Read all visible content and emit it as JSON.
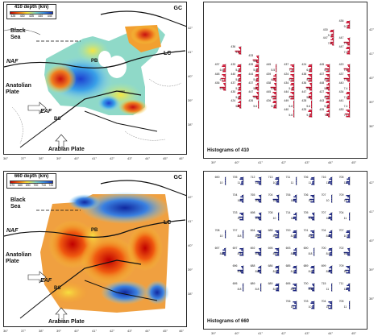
{
  "panels": [
    {
      "map": {
        "colorbar_title": "410 depth (km)",
        "colorbar_ticks": [
          "425",
          "430",
          "435",
          "440",
          "445"
        ],
        "labels": {
          "gc": "GC",
          "black_sea": "Black\nSea",
          "lc": "LC",
          "naf": "NAF",
          "anatolian_plate": "Anatolian\nPlate",
          "eaf": "EAF",
          "bs": "BS",
          "pb": "PB",
          "arabian_plate": "Arabian Plate"
        },
        "x_ticks": [
          "36°",
          "37°",
          "38°",
          "39°",
          "40°",
          "41°",
          "42°",
          "43°",
          "44°",
          "45°",
          "46°"
        ],
        "y_ticks": [
          "42°",
          "41°",
          "40°",
          "39°",
          "38°"
        ]
      },
      "histogram": {
        "title": "Histograms of 410",
        "x_ticks": [
          "39°",
          "40°",
          "41°",
          "42°",
          "43°",
          "44°",
          "45°"
        ],
        "y_ticks": [
          "42°",
          "41°",
          "40°",
          "39°",
          "38°"
        ],
        "color": "#c8102e",
        "cells": [
          {
            "mean": "436",
            "sd": "9.3",
            "col": 7.3,
            "row": 0.0
          },
          {
            "mean": "430",
            "sd": "9.3",
            "col": 6.4,
            "row": 0.7
          },
          {
            "mean": "447",
            "sd": "7.4",
            "col": 7.3,
            "row": 1.3
          },
          {
            "mean": "436",
            "sd": "9.3",
            "col": 1.2,
            "row": 2.0
          },
          {
            "mean": "447",
            "sd": "7.4",
            "col": 7.3,
            "row": 2.0
          },
          {
            "mean": "447",
            "sd": "7.4",
            "col": 6.4,
            "row": 1.3
          },
          {
            "mean": "433",
            "sd": "5.6",
            "col": 2.2,
            "row": 2.7
          },
          {
            "mean": "439",
            "sd": "5.8",
            "col": 2.2,
            "row": 3.4
          },
          {
            "mean": "433",
            "sd": "5.2",
            "col": 1.2,
            "row": 3.4
          },
          {
            "mean": "437",
            "sd": "6.6",
            "col": 0.3,
            "row": 3.4
          },
          {
            "mean": "445",
            "sd": "5.5",
            "col": 3.2,
            "row": 3.4
          },
          {
            "mean": "437",
            "sd": "7.3",
            "col": 4.2,
            "row": 3.4
          },
          {
            "mean": "424",
            "sd": "6.6",
            "col": 5.2,
            "row": 3.4
          },
          {
            "mean": "445",
            "sd": "5.6",
            "col": 6.2,
            "row": 3.4
          },
          {
            "mean": "420",
            "sd": "7.4",
            "col": 7.3,
            "row": 3.4
          },
          {
            "mean": "448",
            "sd": "6.1",
            "col": 0.3,
            "row": 4.1
          },
          {
            "mean": "440",
            "sd": "5.6",
            "col": 1.2,
            "row": 4.1
          },
          {
            "mean": "444",
            "sd": "5.6",
            "col": 2.2,
            "row": 4.1
          },
          {
            "mean": "439",
            "sd": "6.7",
            "col": 3.2,
            "row": 4.1
          },
          {
            "mean": "424",
            "sd": "5.6",
            "col": 4.2,
            "row": 4.1
          },
          {
            "mean": "438",
            "sd": "5.6",
            "col": 5.2,
            "row": 4.1
          },
          {
            "mean": "437",
            "sd": "5.6",
            "col": 6.2,
            "row": 4.1
          },
          {
            "mean": "437",
            "sd": "7.4",
            "col": 7.3,
            "row": 4.1
          },
          {
            "mean": "436",
            "sd": "6.0",
            "col": 0.3,
            "row": 4.8
          },
          {
            "mean": "437",
            "sd": "5.7",
            "col": 1.2,
            "row": 4.8
          },
          {
            "mean": "437",
            "sd": "5.5",
            "col": 2.2,
            "row": 4.8
          },
          {
            "mean": "438",
            "sd": "5.6",
            "col": 3.2,
            "row": 4.8
          },
          {
            "mean": "434",
            "sd": "5.6",
            "col": 4.2,
            "row": 4.8
          },
          {
            "mean": "436",
            "sd": "5.6",
            "col": 5.2,
            "row": 4.8
          },
          {
            "mean": "448",
            "sd": "5.6",
            "col": 6.2,
            "row": 4.8
          },
          {
            "mean": "440",
            "sd": "7.4",
            "col": 7.3,
            "row": 4.8
          },
          {
            "mean": "430",
            "sd": "5.6",
            "col": 1.2,
            "row": 5.5
          },
          {
            "mean": "447",
            "sd": "5.6",
            "col": 2.2,
            "row": 5.5
          },
          {
            "mean": "445",
            "sd": "5.6",
            "col": 3.2,
            "row": 5.5
          },
          {
            "mean": "444",
            "sd": "5.6",
            "col": 4.2,
            "row": 5.5
          },
          {
            "mean": "447",
            "sd": "5.6",
            "col": 5.2,
            "row": 5.5
          },
          {
            "mean": "427",
            "sd": "5.6",
            "col": 6.2,
            "row": 5.5
          },
          {
            "mean": "434",
            "sd": "7.4",
            "col": 7.3,
            "row": 5.5
          },
          {
            "mean": "424",
            "sd": "5.6",
            "col": 1.2,
            "row": 6.2
          },
          {
            "mean": "426",
            "sd": "5.6",
            "col": 2.2,
            "row": 6.2
          },
          {
            "mean": "426",
            "sd": "5.6",
            "col": 3.2,
            "row": 6.2
          },
          {
            "mean": "449",
            "sd": "5.6",
            "col": 4.2,
            "row": 6.2
          },
          {
            "mean": "428",
            "sd": "5.6",
            "col": 5.2,
            "row": 6.2
          },
          {
            "mean": "443",
            "sd": "5.6",
            "col": 6.2,
            "row": 6.2
          },
          {
            "mean": "441",
            "sd": "7.4",
            "col": 7.3,
            "row": 6.2
          },
          {
            "mean": "440",
            "sd": "5.6",
            "col": 4.2,
            "row": 6.9
          },
          {
            "mean": "425",
            "sd": "9.3",
            "col": 5.2,
            "row": 6.9
          },
          {
            "mean": "425",
            "sd": "7.4",
            "col": 6.2,
            "row": 6.9
          },
          {
            "mean": "430",
            "sd": "7.4",
            "col": 7.3,
            "row": 6.9
          }
        ]
      }
    },
    {
      "map": {
        "colorbar_title": "660 depth (km)",
        "colorbar_ticks": [
          "670",
          "680",
          "690",
          "700",
          "710",
          "720"
        ],
        "labels": {
          "gc": "GC",
          "black_sea": "Black\nSea",
          "lc": "LC",
          "naf": "NAF",
          "anatolian_plate": "Anatolian\nPlate",
          "eaf": "EAF",
          "bs": "BS",
          "pb": "PB",
          "arabian_plate": "Arabian Plate"
        },
        "x_ticks": [
          "36°",
          "37°",
          "38°",
          "39°",
          "40°",
          "41°",
          "42°",
          "43°",
          "44°",
          "45°",
          "46°"
        ],
        "y_ticks": [
          "42°",
          "41°",
          "40°",
          "39°",
          "38°"
        ]
      },
      "histogram": {
        "title": "Histograms of 660",
        "x_ticks": [
          "39°",
          "40°",
          "41°",
          "42°",
          "43°",
          "44°",
          "45°"
        ],
        "y_ticks": [
          "42°",
          "41°",
          "40°",
          "39°",
          "38°"
        ],
        "color": "#1a237e",
        "cells": [
          {
            "mean": "690",
            "sd": "10",
            "col": 0.3,
            "row": 0
          },
          {
            "mean": "705",
            "sd": "11",
            "col": 1.3,
            "row": 0
          },
          {
            "mean": "712",
            "sd": "11",
            "col": 2.3,
            "row": 0
          },
          {
            "mean": "713",
            "sd": "10",
            "col": 3.3,
            "row": 0
          },
          {
            "mean": "711",
            "sd": "11",
            "col": 4.3,
            "row": 0
          },
          {
            "mean": "706",
            "sd": "11",
            "col": 5.3,
            "row": 0
          },
          {
            "mean": "716",
            "sd": "11",
            "col": 6.3,
            "row": 0
          },
          {
            "mean": "705",
            "sd": "11",
            "col": 7.3,
            "row": 0
          },
          {
            "mean": "704",
            "sd": "10",
            "col": 1.3,
            "row": 1
          },
          {
            "mean": "765",
            "sd": "10",
            "col": 2.3,
            "row": 1
          },
          {
            "mean": "704",
            "sd": "10",
            "col": 3.3,
            "row": 1
          },
          {
            "mean": "706",
            "sd": "10",
            "col": 4.3,
            "row": 1
          },
          {
            "mean": "706",
            "sd": "10",
            "col": 5.3,
            "row": 1
          },
          {
            "mean": "707",
            "sd": "10",
            "col": 6.3,
            "row": 1
          },
          {
            "mean": "709",
            "sd": "11",
            "col": 7.3,
            "row": 1
          },
          {
            "mean": "703",
            "sd": "10",
            "col": 1.3,
            "row": 2
          },
          {
            "mean": "698",
            "sd": "10",
            "col": 2.3,
            "row": 2
          },
          {
            "mean": "708",
            "sd": "10",
            "col": 3.3,
            "row": 2
          },
          {
            "mean": "714",
            "sd": "11",
            "col": 4.3,
            "row": 2
          },
          {
            "mean": "705",
            "sd": "10",
            "col": 5.3,
            "row": 2
          },
          {
            "mean": "707",
            "sd": "10",
            "col": 6.3,
            "row": 2
          },
          {
            "mean": "704",
            "sd": "11",
            "col": 7.3,
            "row": 2
          },
          {
            "mean": "708",
            "sd": "10",
            "col": 0.3,
            "row": 3
          },
          {
            "mean": "707",
            "sd": "8.8",
            "col": 1.3,
            "row": 3
          },
          {
            "mean": "694",
            "sd": "8.8",
            "col": 2.3,
            "row": 3
          },
          {
            "mean": "688",
            "sd": "8.8",
            "col": 3.3,
            "row": 3
          },
          {
            "mean": "700",
            "sd": "8.8",
            "col": 4.3,
            "row": 3
          },
          {
            "mean": "701",
            "sd": "8.8",
            "col": 5.3,
            "row": 3
          },
          {
            "mean": "704",
            "sd": "8.8",
            "col": 6.3,
            "row": 3
          },
          {
            "mean": "707",
            "sd": "10",
            "col": 7.3,
            "row": 3
          },
          {
            "mean": "697",
            "sd": "8.8",
            "col": 0.3,
            "row": 4
          },
          {
            "mean": "697",
            "sd": "8.8",
            "col": 1.3,
            "row": 4
          },
          {
            "mean": "692",
            "sd": "8.8",
            "col": 2.3,
            "row": 4
          },
          {
            "mean": "695",
            "sd": "8.8",
            "col": 3.3,
            "row": 4
          },
          {
            "mean": "693",
            "sd": "8.8",
            "col": 4.3,
            "row": 4
          },
          {
            "mean": "690",
            "sd": "8.8",
            "col": 5.3,
            "row": 4
          },
          {
            "mean": "700",
            "sd": "8.8",
            "col": 6.3,
            "row": 4
          },
          {
            "mean": "702",
            "sd": "10",
            "col": 7.3,
            "row": 4
          },
          {
            "mean": "696",
            "sd": "8.8",
            "col": 1.3,
            "row": 5
          },
          {
            "mean": "688",
            "sd": "8.8",
            "col": 2.3,
            "row": 5
          },
          {
            "mean": "686",
            "sd": "8.8",
            "col": 3.3,
            "row": 5
          },
          {
            "mean": "685",
            "sd": "8.8",
            "col": 4.3,
            "row": 5
          },
          {
            "mean": "689",
            "sd": "8.8",
            "col": 5.3,
            "row": 5
          },
          {
            "mean": "699",
            "sd": "8.8",
            "col": 6.3,
            "row": 5
          },
          {
            "mean": "709",
            "sd": "10",
            "col": 7.3,
            "row": 5
          },
          {
            "mean": "695",
            "sd": "8.8",
            "col": 1.3,
            "row": 6
          },
          {
            "mean": "689",
            "sd": "8.8",
            "col": 2.3,
            "row": 6
          },
          {
            "mean": "689",
            "sd": "8.8",
            "col": 3.3,
            "row": 6
          },
          {
            "mean": "695",
            "sd": "8.8",
            "col": 4.3,
            "row": 6
          },
          {
            "mean": "700",
            "sd": "8.8",
            "col": 5.3,
            "row": 6
          },
          {
            "mean": "715",
            "sd": "11",
            "col": 6.3,
            "row": 6
          },
          {
            "mean": "711",
            "sd": "11",
            "col": 7.3,
            "row": 6
          },
          {
            "mean": "706",
            "sd": "10",
            "col": 4.3,
            "row": 7
          },
          {
            "mean": "703",
            "sd": "10",
            "col": 5.3,
            "row": 7
          },
          {
            "mean": "704",
            "sd": "11",
            "col": 6.3,
            "row": 7
          },
          {
            "mean": "705",
            "sd": "11",
            "col": 7.3,
            "row": 7
          }
        ]
      }
    }
  ]
}
